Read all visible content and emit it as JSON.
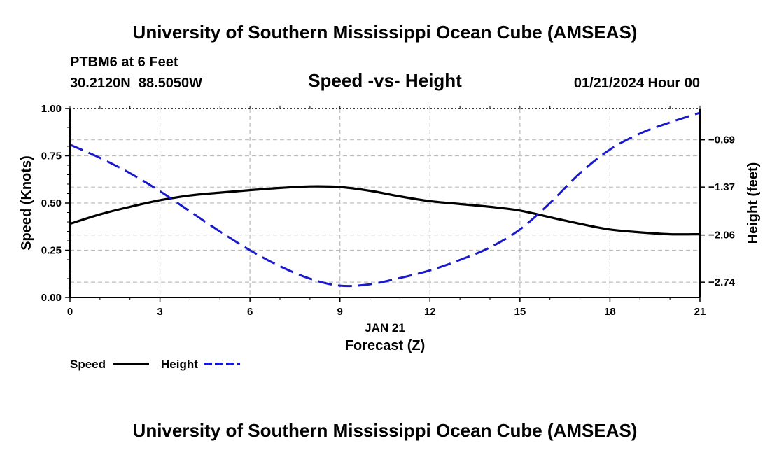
{
  "chart_data": {
    "type": "line",
    "title": "University of Southern Mississippi Ocean Cube (AMSEAS)",
    "footer_title": "University of Southern Mississippi Ocean Cube (AMSEAS)",
    "station": "PTBM6 at 6 Feet",
    "location": "30.2120N  88.5050W",
    "subtitle": "Speed -vs- Height",
    "date": "01/21/2024 Hour 00",
    "xlabel": "Forecast (Z)",
    "xlabel_date": "JAN 21",
    "ylabel_left": "Speed (Knots)",
    "ylabel_right": "Height (feet)",
    "xlim": [
      0,
      21
    ],
    "ylim_left": [
      0,
      1
    ],
    "ylim_right": [
      -2.96,
      -0.24
    ],
    "x_ticks": [
      0,
      3,
      6,
      9,
      12,
      15,
      18,
      21
    ],
    "x_tick_labels": [
      "0",
      "3",
      "6",
      "9",
      "12",
      "15",
      "18",
      "21"
    ],
    "y_left_ticks": [
      0,
      0.25,
      0.5,
      0.75,
      1.0
    ],
    "y_left_tick_labels": [
      "0.00",
      "0.25",
      "0.50",
      "0.75",
      "1.00"
    ],
    "y_right_ticks": [
      -0.69,
      -1.37,
      -2.06,
      -2.74
    ],
    "y_right_tick_labels": [
      "−0.69",
      "−1.37",
      "−2.06",
      "−2.74"
    ],
    "grid": true,
    "series": [
      {
        "name": "Speed",
        "axis": "left",
        "color": "#000000",
        "style": "solid",
        "x": [
          0,
          1,
          2,
          3,
          4,
          5,
          6,
          7,
          8,
          9,
          10,
          11,
          12,
          13,
          14,
          15,
          16,
          17,
          18,
          19,
          20,
          21
        ],
        "values": [
          0.39,
          0.44,
          0.48,
          0.515,
          0.54,
          0.555,
          0.568,
          0.58,
          0.588,
          0.585,
          0.565,
          0.535,
          0.51,
          0.495,
          0.48,
          0.46,
          0.425,
          0.39,
          0.36,
          0.345,
          0.335,
          0.335
        ]
      },
      {
        "name": "Height",
        "axis": "right",
        "color": "#1a1acc",
        "style": "dashed",
        "x": [
          0,
          1,
          2,
          3,
          4,
          5,
          6,
          7,
          8,
          9,
          10,
          11,
          12,
          13,
          14,
          15,
          16,
          17,
          18,
          19,
          20,
          21
        ],
        "values": [
          -0.76,
          -0.95,
          -1.17,
          -1.43,
          -1.72,
          -2.01,
          -2.28,
          -2.51,
          -2.69,
          -2.79,
          -2.77,
          -2.68,
          -2.57,
          -2.42,
          -2.24,
          -1.98,
          -1.6,
          -1.17,
          -0.83,
          -0.6,
          -0.44,
          -0.3
        ]
      }
    ],
    "legend": [
      {
        "label": "Speed",
        "color": "#000000",
        "style": "solid"
      },
      {
        "label": "Height",
        "color": "#1a1acc",
        "style": "dashed"
      }
    ]
  }
}
